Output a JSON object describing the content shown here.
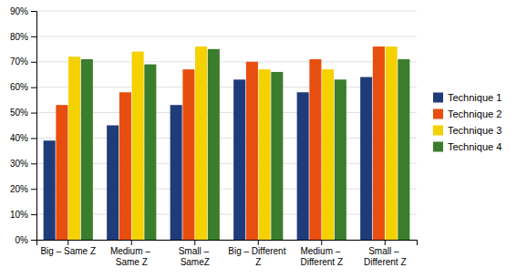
{
  "chart_data": {
    "type": "bar",
    "categories": [
      "Big – Same Z",
      "Medium – Same Z",
      "Small – SameZ",
      "Big – Different Z",
      "Medium – Different Z",
      "Small – Different Z"
    ],
    "series": [
      {
        "name": "Technique 1",
        "color": "#1F3C7A",
        "values": [
          39,
          45,
          53,
          63,
          58,
          64
        ]
      },
      {
        "name": "Technique 2",
        "color": "#E84E0F",
        "values": [
          53,
          58,
          67,
          70,
          71,
          76
        ]
      },
      {
        "name": "Technique 3",
        "color": "#F5D100",
        "values": [
          72,
          74,
          76,
          67,
          67,
          76
        ]
      },
      {
        "name": "Technique 4",
        "color": "#3A7D2C",
        "values": [
          71,
          69,
          75,
          66,
          63,
          71
        ]
      }
    ],
    "ylim": [
      0,
      90
    ],
    "yticks": [
      {
        "value": 0,
        "label": "0%"
      },
      {
        "value": 10,
        "label": "10%"
      },
      {
        "value": 20,
        "label": "20%"
      },
      {
        "value": 30,
        "label": "30%"
      },
      {
        "value": 40,
        "label": "40%"
      },
      {
        "value": 50,
        "label": "50%"
      },
      {
        "value": 60,
        "label": "60%"
      },
      {
        "value": 70,
        "label": "70%"
      },
      {
        "value": 80,
        "label": "80%"
      },
      {
        "value": 90,
        "label": "90%"
      }
    ],
    "grid": true,
    "legend": "right"
  }
}
